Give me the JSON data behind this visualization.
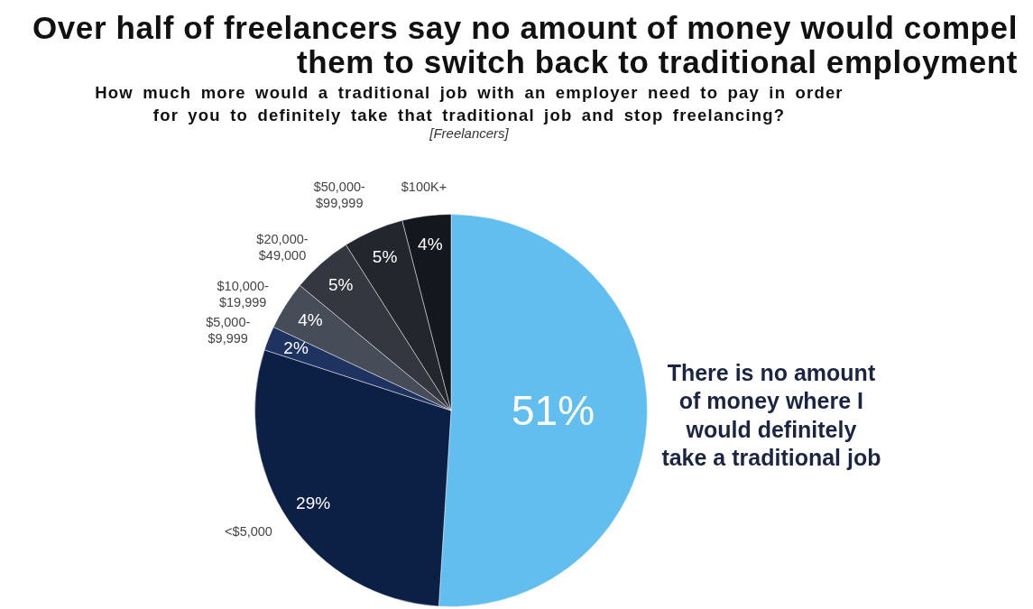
{
  "chart_data": {
    "type": "pie",
    "title": "Over half of freelancers say no amount of money would compel them to switch back to traditional employment",
    "subtitle": "How much more would a traditional job with an employer need to pay in order for you to definitely take that traditional job and stop freelancing?",
    "annotations": [
      "[Freelancers]"
    ],
    "categories": [
      "There is no amount of money where I would definitely take a traditional job",
      "<$5,000",
      "$5,000-$9,999",
      "$10,000-$19,999",
      "$20,000-$49,000",
      "$50,000-$99,999",
      "$100K+"
    ],
    "values": [
      51,
      29,
      2,
      4,
      5,
      5,
      4
    ],
    "colors": [
      "#63bef0",
      "#0c1f44",
      "#1f3360",
      "#474c59",
      "#343740",
      "#24262e",
      "#15171e"
    ],
    "value_labels": [
      "51%",
      "29%",
      "2%",
      "4%",
      "5%",
      "5%",
      "4%"
    ]
  }
}
